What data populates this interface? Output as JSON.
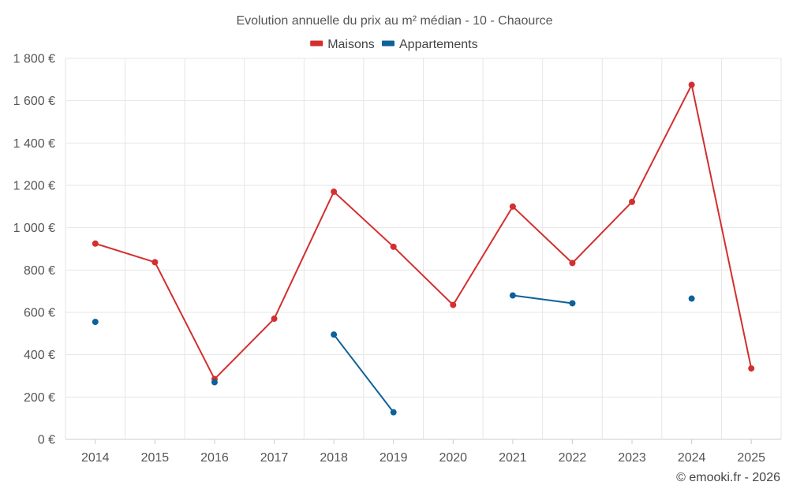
{
  "chart_data": {
    "type": "line",
    "title": "Evolution annuelle du prix au m² médian - 10 - Chaource",
    "categories": [
      "2014",
      "2015",
      "2016",
      "2017",
      "2018",
      "2019",
      "2020",
      "2021",
      "2022",
      "2023",
      "2024",
      "2025"
    ],
    "ylim": [
      0,
      1800
    ],
    "y_ticks": [
      0,
      200,
      400,
      600,
      800,
      1000,
      1200,
      1400,
      1600,
      1800
    ],
    "y_tick_labels": [
      "0 €",
      "200 €",
      "400 €",
      "600 €",
      "800 €",
      "1 000 €",
      "1 200 €",
      "1 400 €",
      "1 600 €",
      "1 800 €"
    ],
    "grid": true,
    "legend_position": "top-center",
    "series": [
      {
        "name": "Maisons",
        "color": "#d32f2f",
        "values": [
          925,
          837,
          285,
          570,
          1170,
          910,
          635,
          1100,
          833,
          1122,
          1675,
          335
        ]
      },
      {
        "name": "Appartements",
        "color": "#0d6199",
        "values": [
          555,
          null,
          270,
          null,
          495,
          128,
          null,
          680,
          643,
          null,
          665,
          null
        ]
      }
    ]
  },
  "credit": "© emooki.fr - 2026"
}
